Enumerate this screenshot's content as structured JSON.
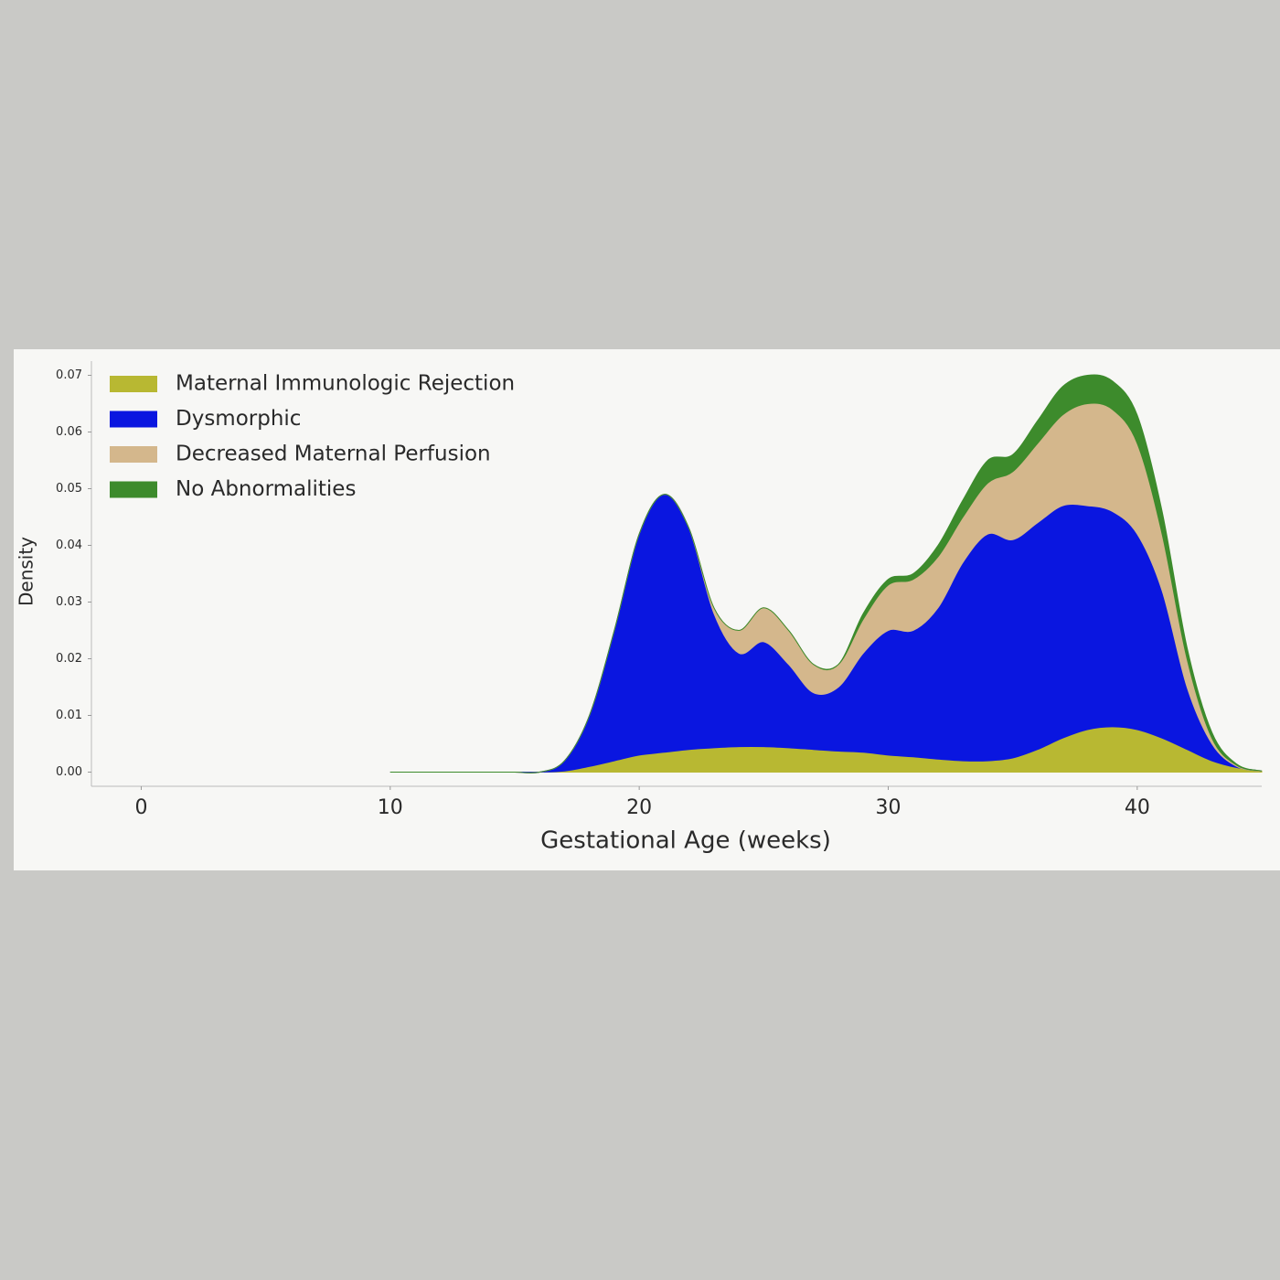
{
  "chart_data": {
    "type": "stacked-area",
    "xlabel": "Gestational Age (weeks)",
    "ylabel": "Density",
    "x": [
      10,
      11,
      12,
      13,
      14,
      15,
      16,
      17,
      18,
      19,
      20,
      21,
      22,
      23,
      24,
      25,
      26,
      27,
      28,
      29,
      30,
      31,
      32,
      33,
      34,
      35,
      36,
      37,
      38,
      39,
      40,
      41,
      42,
      43,
      44,
      45
    ],
    "series": [
      {
        "name": "Maternal Immunologic Rejection",
        "color": "#b8b832",
        "values": [
          0,
          0,
          0,
          0,
          0,
          0,
          0,
          0.0002,
          0.001,
          0.002,
          0.003,
          0.0035,
          0.004,
          0.0043,
          0.0045,
          0.0045,
          0.0043,
          0.004,
          0.0037,
          0.0035,
          0.003,
          0.0027,
          0.0023,
          0.002,
          0.002,
          0.0025,
          0.004,
          0.006,
          0.0075,
          0.008,
          0.0075,
          0.006,
          0.004,
          0.002,
          0.0008,
          0.0002
        ]
      },
      {
        "name": "Dysmorphic",
        "color": "#0a16e0",
        "values": [
          0,
          0,
          0,
          0,
          0,
          0,
          0,
          0.0018,
          0.009,
          0.023,
          0.039,
          0.0455,
          0.039,
          0.0237,
          0.0165,
          0.0185,
          0.0147,
          0.01,
          0.0113,
          0.0175,
          0.022,
          0.0223,
          0.0267,
          0.035,
          0.04,
          0.0385,
          0.04,
          0.041,
          0.0395,
          0.038,
          0.0345,
          0.026,
          0.011,
          0.003,
          0.0002,
          0
        ]
      },
      {
        "name": "Decreased Maternal Perfusion",
        "color": "#d4b78c",
        "values": [
          0,
          0,
          0,
          0,
          0,
          0,
          0,
          0,
          0,
          0,
          0,
          0,
          0,
          0.001,
          0.004,
          0.006,
          0.006,
          0.005,
          0.004,
          0.006,
          0.008,
          0.009,
          0.009,
          0.008,
          0.009,
          0.012,
          0.014,
          0.016,
          0.018,
          0.018,
          0.016,
          0.01,
          0.005,
          0.001,
          0.0002,
          0
        ]
      },
      {
        "name": "No Abnormalities",
        "color": "#3d8b2c",
        "values": [
          0,
          0,
          0,
          0,
          0,
          0,
          0,
          0,
          0,
          0,
          0,
          0,
          0,
          0,
          0,
          0,
          0,
          0,
          0,
          0.001,
          0.001,
          0.001,
          0.002,
          0.003,
          0.004,
          0.003,
          0.004,
          0.005,
          0.005,
          0.005,
          0.005,
          0.004,
          0.002,
          0.001,
          0.0002,
          0
        ]
      }
    ],
    "xlim": [
      -2,
      45
    ],
    "ylim": [
      -0.0025,
      0.0725
    ],
    "xticks": [
      0,
      10,
      20,
      30,
      40
    ],
    "yticks": [
      {
        "value": 0,
        "label": "0.00"
      },
      0.01,
      0.02,
      0.03,
      0.04,
      0.05,
      0.06,
      0.07
    ],
    "legend": "upper-left"
  }
}
